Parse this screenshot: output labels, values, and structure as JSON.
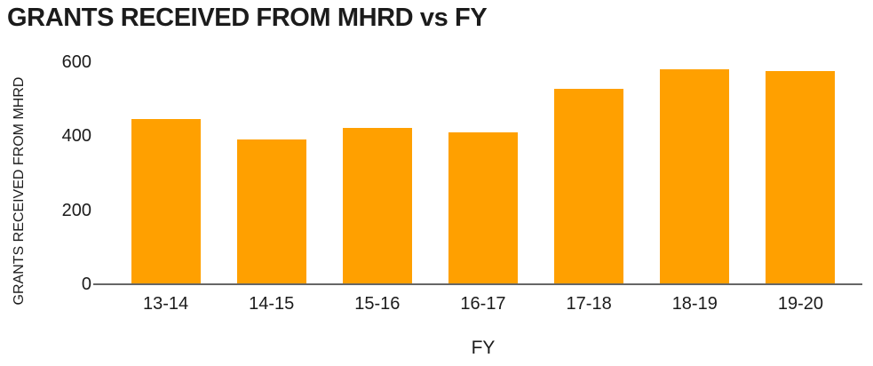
{
  "chart_data": {
    "type": "bar",
    "title": "GRANTS RECEIVED FROM MHRD vs FY",
    "xlabel": "FY",
    "ylabel": "GRANTS RECEIVED FROM MHRD",
    "categories": [
      "13-14",
      "14-15",
      "15-16",
      "16-17",
      "17-18",
      "18-19",
      "19-20"
    ],
    "values": [
      447,
      392,
      423,
      410,
      528,
      582,
      576
    ],
    "ylim": [
      0,
      600
    ],
    "yticks": [
      0,
      200,
      400,
      600
    ],
    "grid": false,
    "legend": false,
    "bar_color": "#FFA000",
    "axis_line_color": "#666666",
    "text_color": "#1b1b1b"
  }
}
